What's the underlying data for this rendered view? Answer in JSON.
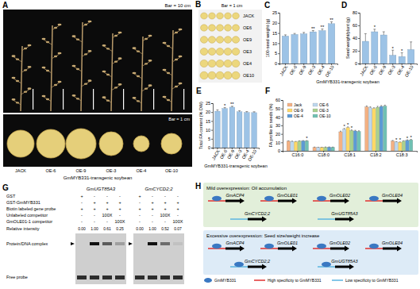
{
  "chart_data": [
    {
      "type": "bar",
      "title": "C",
      "ylabel": "100-seed weight (g)",
      "xlabel": "GmMYB331-transgenic soybean",
      "categories": [
        "JACK",
        "OE-6",
        "OE-9",
        "OE-3",
        "OE-4",
        "OE-10"
      ],
      "values": [
        13.5,
        14.3,
        14.6,
        15.6,
        16.2,
        19.6
      ],
      "errors": [
        0.6,
        0.5,
        0.7,
        0.6,
        0.8,
        0.9
      ],
      "significance": [
        null,
        null,
        null,
        "**",
        "**",
        "**"
      ],
      "color": "#9dc3e6",
      "ylim": [
        0,
        25
      ],
      "yticks": [
        0,
        5,
        10,
        15,
        20,
        25
      ]
    },
    {
      "type": "bar",
      "title": "D",
      "ylabel": "Seed weight/plant (g)",
      "categories": [
        "JACK",
        "OE-6",
        "OE-9",
        "OE-3",
        "OE-4",
        "OE-10"
      ],
      "values": [
        35,
        50,
        45,
        13,
        11,
        22
      ],
      "errors": [
        12,
        4,
        5,
        8,
        6,
        12
      ],
      "significance": [
        null,
        "*",
        null,
        "*",
        "*",
        null
      ],
      "color": "#9dc3e6",
      "ylim": [
        0,
        80
      ],
      "yticks": [
        0,
        20,
        40,
        60,
        80
      ]
    },
    {
      "type": "bar",
      "title": "E",
      "ylabel": "Total FA content (% DW)",
      "xlabel": "GmMYB331-transgenic soybean",
      "categories": [
        "JACK",
        "OE-6",
        "OE-9",
        "OE-3",
        "OE-4",
        "OE-10"
      ],
      "values": [
        20.5,
        22.0,
        22.8,
        20.2,
        19.8,
        19.7
      ],
      "errors": [
        0.8,
        0.6,
        0.5,
        0.6,
        0.5,
        0.5
      ],
      "significance": [
        null,
        "*",
        "**",
        null,
        null,
        null
      ],
      "color": "#9dc3e6",
      "ylim": [
        0,
        25
      ],
      "yticks": [
        0,
        5,
        10,
        15,
        20,
        25
      ]
    },
    {
      "type": "bar",
      "title": "F",
      "ylabel": "FA profile in seeds (%)",
      "categories": [
        "C16:0",
        "C18:0",
        "C18:1",
        "C18:2",
        "C18:3"
      ],
      "legend": "upper left",
      "ylim": [
        0,
        60
      ],
      "yticks": [
        0,
        10,
        20,
        30,
        40,
        50,
        60
      ],
      "series": [
        {
          "name": "Jack",
          "color": "#f4b183",
          "values": [
            11.5,
            4.2,
            22.5,
            52.0,
            11.8
          ],
          "errors": [
            0.4,
            0.3,
            0.8,
            1.0,
            0.5
          ],
          "significance": [
            null,
            null,
            null,
            null,
            null
          ]
        },
        {
          "name": "OE-6",
          "color": "#bdd7ee",
          "values": [
            11.2,
            4.0,
            25.5,
            51.0,
            10.5
          ],
          "errors": [
            0.3,
            0.3,
            0.9,
            1.0,
            0.4
          ],
          "significance": [
            null,
            null,
            "*",
            null,
            "*"
          ]
        },
        {
          "name": "OE-9",
          "color": "#ffd966",
          "values": [
            10.8,
            4.1,
            27.5,
            50.0,
            10.2
          ],
          "errors": [
            0.4,
            0.2,
            0.8,
            0.9,
            0.4
          ],
          "significance": [
            null,
            null,
            "*",
            null,
            "*"
          ]
        },
        {
          "name": "OE-3",
          "color": "#a9d18e",
          "values": [
            11.6,
            4.3,
            24.0,
            51.5,
            11.5
          ],
          "errors": [
            0.3,
            0.3,
            0.7,
            1.1,
            0.5
          ],
          "significance": [
            null,
            null,
            "*",
            null,
            null
          ]
        },
        {
          "name": "OE-4",
          "color": "#5b9bd5",
          "values": [
            11.8,
            4.4,
            23.5,
            52.5,
            12.5
          ],
          "errors": [
            0.4,
            0.3,
            0.8,
            1.0,
            0.5
          ],
          "significance": [
            null,
            null,
            null,
            null,
            "*"
          ]
        },
        {
          "name": "OE-10",
          "color": "#70c1b3",
          "values": [
            11.9,
            4.3,
            23.0,
            53.0,
            13.0
          ],
          "errors": [
            0.3,
            0.2,
            0.7,
            1.0,
            0.6
          ],
          "significance": [
            "*",
            null,
            null,
            null,
            "*"
          ]
        }
      ]
    }
  ],
  "panel_a": {
    "label": "A",
    "scale_bar_plants": "Bar = 10 cm",
    "scale_bar_seeds": "Bar = 1 cm",
    "lines": [
      "JACK",
      "OE-6",
      "OE-9",
      "OE-3",
      "OE-4",
      "OE-10"
    ],
    "caption": "GmMYB331-transgenic soybean"
  },
  "panel_b": {
    "label": "B",
    "scale_bar": "Bar = 1 cm",
    "lines": [
      "JACK",
      "OE6",
      "OE9",
      "OE3",
      "OE4",
      "OE10"
    ]
  },
  "panel_g": {
    "label": "G",
    "probes": [
      {
        "name": "GmUGT85A3",
        "relative_intensity": [
          0,
          1,
          0.61,
          0.25
        ],
        "intensity_labels": [
          "0.00",
          "1.00",
          "0.61",
          "0.25"
        ]
      },
      {
        "name": "GmCYCD2;2",
        "relative_intensity": [
          0,
          1,
          0.52,
          0.07
        ],
        "intensity_labels": [
          "0.00",
          "1.00",
          "0.52",
          "0.07"
        ]
      }
    ],
    "rows": [
      {
        "label": "GST",
        "lanes": [
          "+",
          "-",
          "-",
          "-"
        ]
      },
      {
        "label": "GST-GmMYB331",
        "lanes": [
          "-",
          "+",
          "+",
          "+"
        ]
      },
      {
        "label": "Biotin labeled gene probe",
        "lanes": [
          "+",
          "+",
          "+",
          "+"
        ]
      },
      {
        "label": "Unlabeled competitor",
        "lanes": [
          "-",
          "-",
          "100X",
          "-"
        ]
      },
      {
        "label": "GmOLE01-1 competitor",
        "lanes": [
          "-",
          "-",
          "-",
          "100X"
        ]
      }
    ],
    "intensity_title": "Relative intensity",
    "complex_label": "Protein/DNA complex",
    "free_probe_label": "Free probe"
  },
  "panel_h": {
    "label": "H",
    "states": [
      {
        "title": "Mild overexpression: Oil accumulation",
        "genes": [
          {
            "name": "GmACP4",
            "specificity": "high",
            "bound": true
          },
          {
            "name": "GmOLE01",
            "specificity": "high",
            "bound": true
          },
          {
            "name": "GmOLE02",
            "specificity": "high",
            "bound": true
          },
          {
            "name": "GmOLE04",
            "specificity": "high",
            "bound": true
          },
          {
            "name": "GmCYCD2;2",
            "specificity": "low",
            "bound": false
          },
          {
            "name": "GmUGT85A3",
            "specificity": "low",
            "bound": false
          }
        ]
      },
      {
        "title": "Excessive overexpression: Seed size/weight increase",
        "genes": [
          {
            "name": "GmACP4",
            "specificity": "high",
            "bound": true
          },
          {
            "name": "GmOLE01",
            "specificity": "high",
            "bound": true
          },
          {
            "name": "GmOLE02",
            "specificity": "high",
            "bound": true
          },
          {
            "name": "GmOLE04",
            "specificity": "high",
            "bound": true
          },
          {
            "name": "GmCYCD2;2",
            "specificity": "low",
            "bound": true
          },
          {
            "name": "GmUGT85A3",
            "specificity": "low",
            "bound": true
          }
        ]
      }
    ],
    "legend": {
      "protein": "GmMYB331",
      "high": "High specificity to GmMYB331",
      "low": "Low specificity to GmMYB331"
    }
  }
}
